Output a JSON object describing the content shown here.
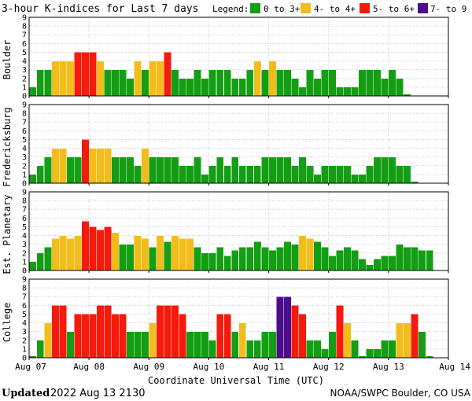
{
  "chart_data": {
    "type": "bar",
    "title": "3-hour K-indices for Last 7 days",
    "legend": {
      "label": "Legend:",
      "items": [
        {
          "label": "0 to 3+",
          "color": "#139e13"
        },
        {
          "label": "4- to 4+",
          "color": "#f2bd1a"
        },
        {
          "label": "5- to 6+",
          "color": "#f51a0b"
        },
        {
          "label": "7- to 9",
          "color": "#4b0d8c"
        }
      ]
    },
    "x_ticks": [
      "Aug 07",
      "Aug 08",
      "Aug 09",
      "Aug 10",
      "Aug 11",
      "Aug 12",
      "Aug 13",
      "Aug 14"
    ],
    "xlabel": "Coordinate Universal Time (UTC)",
    "y_ticks": [
      "0",
      "1",
      "2",
      "3",
      "4",
      "5",
      "6",
      "7",
      "8",
      "9"
    ],
    "ylim": [
      0,
      9
    ],
    "interval_hours": 3,
    "panels": [
      {
        "name": "Boulder",
        "values": [
          1,
          3,
          3,
          4,
          4,
          4,
          5,
          5,
          5,
          4,
          3,
          3,
          3,
          2,
          4,
          3,
          4,
          4,
          5,
          3,
          2,
          2,
          3,
          2,
          3,
          3,
          3,
          2,
          2,
          3,
          4,
          3,
          4,
          3,
          3,
          2,
          1,
          3,
          2,
          3,
          3,
          1,
          1,
          1,
          3,
          3,
          3,
          2,
          3,
          2,
          0.2
        ]
      },
      {
        "name": "Fredericksburg",
        "values": [
          1,
          2,
          3,
          4,
          4,
          3,
          3,
          5,
          4,
          4,
          4,
          3,
          3,
          3,
          2,
          4,
          3,
          3,
          3,
          3,
          2,
          2,
          3,
          1,
          2,
          3,
          2,
          3,
          2,
          2,
          2,
          3,
          3,
          3,
          3,
          2,
          3,
          2,
          1,
          2,
          2,
          2,
          2,
          1,
          1,
          2,
          3,
          3,
          3,
          2,
          2,
          0.2
        ]
      },
      {
        "name": "Est. Planetary",
        "values": [
          1,
          2,
          2.67,
          3.67,
          4,
          3.67,
          4,
          5.67,
          5,
          4.67,
          5,
          4.33,
          3,
          3,
          4,
          3.67,
          2.67,
          4,
          3.33,
          4,
          3.67,
          3.67,
          2.67,
          2,
          2,
          2.67,
          1.67,
          2.33,
          2.67,
          2.67,
          3.33,
          2.67,
          2.33,
          2.67,
          3.33,
          3,
          4,
          3.67,
          3.33,
          2.67,
          1.67,
          2.33,
          2.67,
          2.33,
          1.33,
          0.67,
          1.33,
          1.67,
          1.67,
          3,
          2.67,
          2.67,
          2.33,
          2.33
        ]
      },
      {
        "name": "College",
        "values": [
          0.2,
          2,
          4,
          6,
          6,
          3,
          5,
          5,
          5,
          6,
          6,
          5,
          5,
          3,
          3,
          3,
          4,
          6,
          6,
          6,
          5,
          3,
          3,
          3,
          2,
          5,
          5,
          3,
          4,
          2,
          2,
          3,
          3,
          7,
          7,
          6,
          5,
          2,
          2,
          1,
          3,
          6,
          4,
          2,
          0.2,
          1,
          1,
          2,
          2,
          4,
          4,
          5,
          3,
          0.2
        ]
      }
    ]
  },
  "footer": {
    "updated_label": "Updated",
    "updated_value": "2022 Aug 13 2130",
    "source": "NOAA/SWPC Boulder, CO USA"
  }
}
